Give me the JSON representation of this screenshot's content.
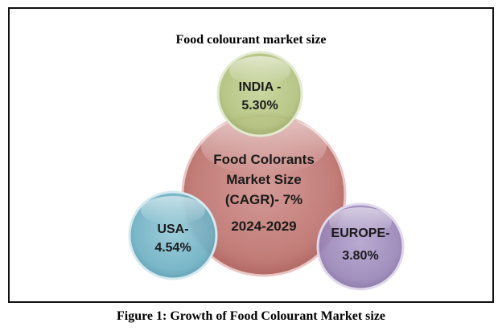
{
  "diagram": {
    "title": "Food colourant market size",
    "center": {
      "lines": [
        "Food Colorants",
        "Market Size",
        "(CAGR)- 7%",
        "2024-2029"
      ],
      "color": "#c27c78"
    },
    "satellites": [
      {
        "id": "india",
        "lines": [
          "INDIA -",
          "5.30%"
        ],
        "color": "#b2c27e"
      },
      {
        "id": "usa",
        "lines": [
          "USA-",
          "4.54%"
        ],
        "color": "#6fb1c4"
      },
      {
        "id": "europe",
        "lines": [
          "EUROPE-",
          "3.80%"
        ],
        "color": "#9a86b8"
      }
    ]
  },
  "caption": "Figure 1: Growth of Food Colourant Market size"
}
